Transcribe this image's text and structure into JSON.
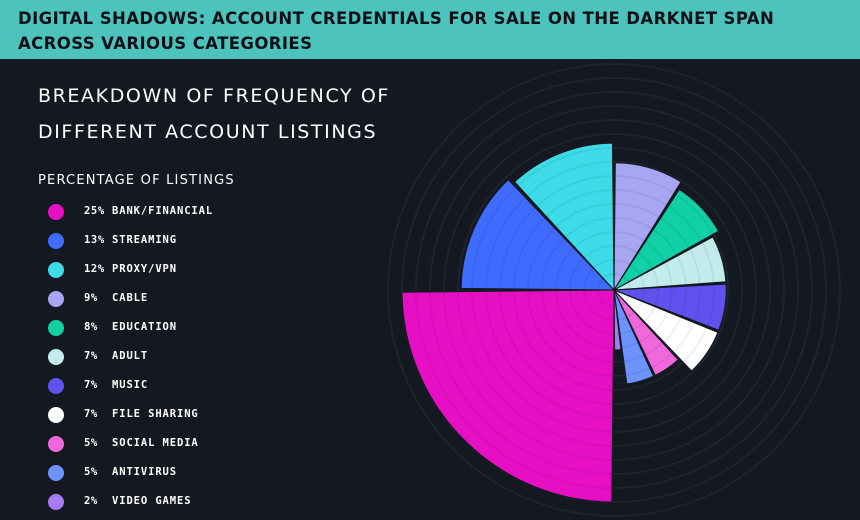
{
  "header": {
    "title": "DIGITAL SHADOWS: ACCOUNT CREDENTIALS FOR SALE ON THE DARKNET SPAN ACROSS VARIOUS CATEGORIES"
  },
  "chart_title_lines": [
    "BREAKDOWN OF FREQUENCY OF",
    "DIFFERENT ACCOUNT LISTINGS"
  ],
  "legend_title": "PERCENTAGE OF LISTINGS",
  "colors": {
    "header_bg": "#4cc3bd",
    "page_bg": "#141820"
  },
  "chart_data": {
    "type": "pie",
    "subtype": "polar-area",
    "title": "BREAKDOWN OF FREQUENCY OF DIFFERENT ACCOUNT LISTINGS",
    "legend_title": "PERCENTAGE OF LISTINGS",
    "legend_position": "left",
    "grid": true,
    "categories": [
      "BANK/FINANCIAL",
      "STREAMING",
      "PROXY/VPN",
      "CABLE",
      "EDUCATION",
      "ADULT",
      "MUSIC",
      "FILE SHARING",
      "SOCIAL MEDIA",
      "ANTIVIRUS",
      "VIDEO GAMES"
    ],
    "values": [
      25,
      13,
      12,
      9,
      8,
      7,
      7,
      7,
      5,
      5,
      2
    ],
    "value_labels": [
      "25%",
      "13%",
      "12%",
      "9%",
      "8%",
      "7%",
      "7%",
      "7%",
      "5%",
      "5%",
      "2%"
    ],
    "colors": [
      "#e60fc4",
      "#3f6bff",
      "#3ddce8",
      "#a7a6f2",
      "#10d1a6",
      "#c2ecec",
      "#6052ee",
      "#ffffff",
      "#f068db",
      "#6d93ff",
      "#a57cf4"
    ]
  }
}
